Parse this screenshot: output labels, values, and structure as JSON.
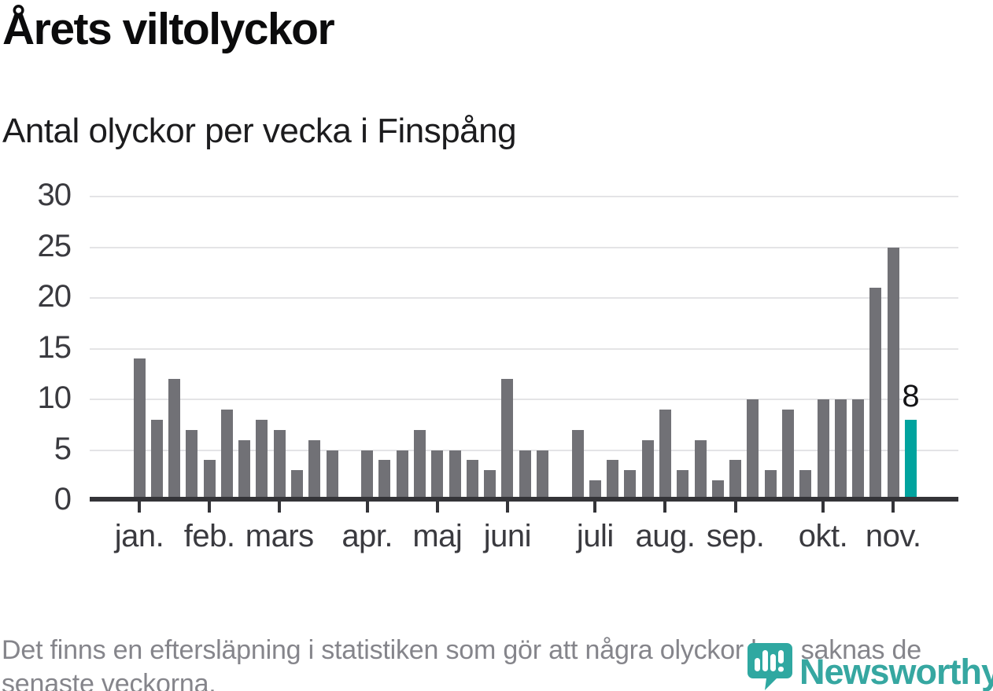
{
  "header": {
    "title": "Årets viltolyckor",
    "subtitle": "Antal olyckor per vecka i Finspång"
  },
  "footer": {
    "note": "Det finns en eftersläpning i statistiken som gör att några olyckor kan saknas de senaste veckorna."
  },
  "logo": {
    "text": "Newsworthy",
    "color": "#36a7a1"
  },
  "colors": {
    "bar": "#717176",
    "highlight": "#00a39e",
    "gridline": "#e4e4e6",
    "axis": "#343438",
    "axis_text": "#3a3a3f",
    "title_text": "#0b0b0c",
    "footer_text": "#85858b"
  },
  "chart_data": {
    "type": "bar",
    "title": "Årets viltolyckor",
    "subtitle": "Antal olyckor per vecka i Finspång",
    "ylim": [
      0,
      30
    ],
    "yticks": [
      0,
      5,
      10,
      15,
      20,
      25,
      30
    ],
    "grid": "horizontal",
    "legend": "none",
    "categories_note": "one bar per week of the year; null = week without a bar",
    "weekly_values": [
      14,
      8,
      12,
      7,
      4,
      9,
      6,
      8,
      7,
      3,
      6,
      5,
      null,
      5,
      4,
      5,
      7,
      5,
      5,
      4,
      3,
      12,
      5,
      5,
      null,
      7,
      2,
      4,
      3,
      6,
      9,
      3,
      6,
      2,
      4,
      10,
      3,
      9,
      3,
      10,
      10,
      10,
      21,
      25,
      8
    ],
    "months": [
      {
        "label": "jan.",
        "start_week": 1
      },
      {
        "label": "feb.",
        "start_week": 5
      },
      {
        "label": "mars",
        "start_week": 9
      },
      {
        "label": "apr.",
        "start_week": 14
      },
      {
        "label": "maj",
        "start_week": 18
      },
      {
        "label": "juni",
        "start_week": 22
      },
      {
        "label": "juli",
        "start_week": 27
      },
      {
        "label": "aug.",
        "start_week": 31
      },
      {
        "label": "sep.",
        "start_week": 35
      },
      {
        "label": "okt.",
        "start_week": 40
      },
      {
        "label": "nov.",
        "start_week": 44
      }
    ],
    "highlight_last_bar": true,
    "last_value_label": "8"
  }
}
